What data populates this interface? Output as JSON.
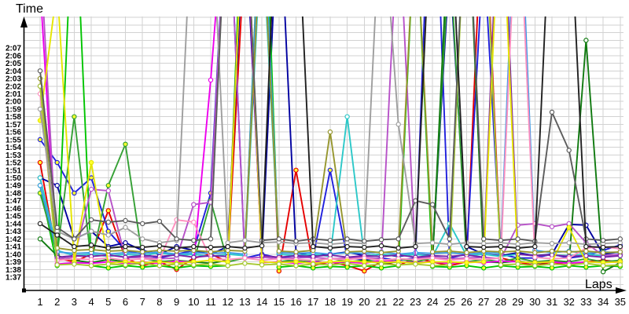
{
  "chart_data": {
    "type": "line",
    "title": "",
    "ylabel": "Time",
    "xlabel": "Laps",
    "grid": true,
    "legend": false,
    "background_color": "#ffffff",
    "grid_color": "#d2d2d2",
    "axis_color": "#000000",
    "y_unit": "seconds",
    "y_tick_start_seconds": 97,
    "y_tick_labels": [
      "1:37",
      "1:38",
      "1:39",
      "1:40",
      "1:41",
      "1:42",
      "1:43",
      "1:44",
      "1:45",
      "1:46",
      "1:47",
      "1:48",
      "1:49",
      "1:50",
      "1:51",
      "1:52",
      "1:53",
      "1:54",
      "1:55",
      "1:56",
      "1:57",
      "1:58",
      "1:59",
      "2:00",
      "2:01",
      "2:02",
      "2:03",
      "2:04",
      "2:05",
      "2:06",
      "2:07"
    ],
    "ylim_seconds": [
      95.6,
      131.5
    ],
    "x_ticks": [
      1,
      2,
      3,
      4,
      5,
      6,
      7,
      8,
      9,
      10,
      11,
      12,
      13,
      14,
      15,
      16,
      17,
      18,
      19,
      20,
      21,
      22,
      23,
      24,
      25,
      26,
      27,
      28,
      29,
      30,
      31,
      32,
      33,
      34,
      35
    ],
    "note": "values are lap times in seconds; values above ylim render as spikes clipped at chart top",
    "series": [
      {
        "name": "red",
        "color": "#e60000",
        "marker_fill": "#ffff2e",
        "values": [
          112,
          99.5,
          99,
          100,
          105.7,
          99.5,
          98.5,
          99,
          98,
          99.5,
          100,
          99,
          140,
          152,
          97.8,
          111,
          98.5,
          99,
          98.5,
          97.8,
          99,
          98.5,
          99.5,
          99,
          98.5,
          99,
          150,
          99.5,
          99,
          98.5,
          99,
          98.5,
          99,
          99.2,
          99
        ]
      },
      {
        "name": "blue",
        "color": "#2020dd",
        "marker_fill": "#ffff2e",
        "values": [
          115,
          112,
          108,
          110,
          103,
          100.5,
          100,
          99.5,
          100,
          100.5,
          108,
          150,
          99.5,
          100,
          99.5,
          99.8,
          99.5,
          111,
          99.5,
          99.3,
          99.5,
          99.2,
          99.5,
          160,
          99.5,
          100,
          140,
          100,
          99.5,
          99.5,
          100,
          99.5,
          99.8,
          100.5,
          101.2
        ]
      },
      {
        "name": "navy",
        "color": "#0000a0",
        "marker_fill": "#ffffff",
        "values": [
          110,
          109,
          102,
          103,
          101,
          101.5,
          100.5,
          100,
          101,
          100.5,
          100,
          101,
          145,
          99.8,
          148,
          100.2,
          99.8,
          100,
          100.3,
          99.8,
          100,
          99.7,
          100,
          99.8,
          138,
          101,
          100,
          99.8,
          100.2,
          99.8,
          100,
          103.9,
          103.8,
          100,
          100.3
        ]
      },
      {
        "name": "green",
        "color": "#00c400",
        "marker_fill": "#ffff2e",
        "values": [
          109,
          98.5,
          150,
          98.5,
          98.2,
          98.5,
          98.3,
          98.5,
          98.2,
          98.5,
          98.4,
          98.5,
          155,
          160,
          98.3,
          98.5,
          98.2,
          98.4,
          98.3,
          98.5,
          98.2,
          98.5,
          145,
          98.4,
          98.3,
          98.5,
          98.2,
          98.5,
          98.3,
          98.4,
          98.2,
          98.5,
          98.3,
          98.5,
          98.4
        ]
      },
      {
        "name": "forest-green",
        "color": "#35a035",
        "marker_fill": "#ffff2e",
        "values": [
          108,
          100,
          118,
          99,
          109,
          114.4,
          99.5,
          99,
          99.2,
          99,
          107,
          99,
          99.5,
          152,
          99,
          99.3,
          99,
          99.5,
          99,
          99.2,
          99,
          99.4,
          99,
          99.5,
          140,
          99,
          99.3,
          99,
          99.5,
          99,
          99.2,
          99,
          99.4,
          99,
          99.2
        ]
      },
      {
        "name": "dark-green",
        "color": "#107a10",
        "marker_fill": "#ffffff",
        "values": [
          102,
          99.8,
          99.2,
          98.9,
          99.3,
          99,
          98.8,
          99.1,
          98.9,
          99,
          98.8,
          99.2,
          150,
          99,
          98.9,
          99.1,
          98.8,
          99,
          98.9,
          99.2,
          98.8,
          99,
          98.9,
          99,
          145,
          150,
          99,
          98.9,
          99.1,
          98.8,
          99,
          98.9,
          128,
          97.7,
          98.9
        ]
      },
      {
        "name": "cyan",
        "color": "#2cc8c8",
        "marker_fill": "#ffffff",
        "values": [
          110,
          100.5,
          99.8,
          100,
          99.7,
          100,
          99.8,
          100.2,
          99.8,
          100,
          99.7,
          100,
          99.8,
          143,
          100,
          99.8,
          100,
          99.7,
          118,
          99.8,
          100,
          99.8,
          100,
          99.7,
          104,
          99.8,
          100,
          99.7,
          100,
          99.8,
          99.9,
          99.8,
          100,
          99.8,
          99.9
        ]
      },
      {
        "name": "sky-blue",
        "color": "#3b9ce8",
        "marker_fill": "#ffffff",
        "values": [
          109,
          100.3,
          100.1,
          100.2,
          100,
          100.2,
          100.1,
          100.3,
          100,
          100.2,
          100.1,
          100.2,
          100,
          150,
          100.2,
          100.1,
          100.2,
          100,
          100.2,
          100.1,
          100.3,
          100,
          100.2,
          100.1,
          100.2,
          100,
          100.2,
          100.1,
          155,
          100.5,
          100.2,
          100.4,
          100.1,
          100.3,
          100.2
        ]
      },
      {
        "name": "magenta",
        "color": "#ee00ee",
        "marker_fill": "#ffffff",
        "values": [
          135,
          98.7,
          98.9,
          98.8,
          99,
          98.8,
          99,
          98.8,
          99.1,
          98.9,
          122.8,
          152,
          148,
          98.9,
          99,
          98.8,
          99,
          98.9,
          99,
          98.8,
          99.2,
          99,
          98.9,
          99,
          98.8,
          99,
          98.9,
          99.1,
          99,
          98.9,
          99,
          98.8,
          99,
          98.9,
          99
        ]
      },
      {
        "name": "orchid",
        "color": "#b752c8",
        "marker_fill": "#ffffff",
        "values": [
          140,
          99.4,
          99.6,
          108.5,
          108.3,
          99.5,
          99.6,
          99.4,
          99.5,
          106.5,
          106.8,
          150,
          99.5,
          99.6,
          99.4,
          99.5,
          99.6,
          99.4,
          99.5,
          99.6,
          99.4,
          145,
          99.5,
          99.6,
          99.4,
          99.5,
          99.6,
          99.4,
          103.8,
          104,
          103.6,
          104,
          101.5,
          99.8,
          100
        ]
      },
      {
        "name": "purple",
        "color": "#7a22a8",
        "marker_fill": "#ffffff",
        "values": [
          122,
          99.6,
          99.8,
          99.7,
          99.9,
          99.6,
          99.8,
          99.7,
          99.9,
          99.6,
          99.8,
          99.7,
          150,
          99.8,
          99.6,
          99.8,
          99.7,
          99.9,
          99.6,
          99.8,
          99.7,
          99.9,
          99.6,
          99.8,
          99.7,
          99.9,
          99.6,
          155,
          100,
          99.8,
          99.9,
          99.7,
          99.8,
          99.6,
          99.8
        ]
      },
      {
        "name": "pink",
        "color": "#ff8fbe",
        "marker_fill": "#ffffff",
        "values": [
          121,
          99.2,
          99.4,
          99.3,
          99.5,
          99.2,
          99.4,
          99.3,
          104.5,
          104.2,
          99.4,
          99.3,
          99.5,
          99.2,
          99.4,
          99.3,
          99.2,
          99.4,
          99.3,
          99.5,
          99.2,
          99.4,
          99.3,
          99.5,
          99.2,
          99.4,
          99.3,
          99.5,
          150,
          99.6,
          99.4,
          99.5,
          100.8,
          101,
          100.7
        ]
      },
      {
        "name": "yellow",
        "color": "#e6e600",
        "marker_fill": "#ffff2e",
        "values": [
          117.5,
          135,
          99,
          112,
          98.8,
          99,
          98.9,
          99,
          98.8,
          99,
          99.2,
          99,
          150,
          99,
          98.9,
          99,
          98.8,
          99,
          99.1,
          99,
          98.9,
          99,
          98.8,
          99,
          99,
          98.9,
          99,
          150,
          99,
          98.9,
          99,
          103.5,
          99,
          98.9,
          99
        ]
      },
      {
        "name": "olive",
        "color": "#96962e",
        "marker_fill": "#ffffff",
        "values": [
          123,
          100.8,
          100.5,
          100.6,
          100.4,
          100.5,
          100.3,
          100.5,
          100.4,
          100.5,
          100.3,
          100.5,
          100.4,
          145,
          100.4,
          100.3,
          100.5,
          116,
          100.3,
          100.4,
          100.2,
          100.4,
          145,
          100.3,
          100.4,
          100.2,
          100.4,
          100.3,
          100.4,
          100.2,
          100.4,
          100.3,
          100.4,
          100.2,
          100.3
        ]
      },
      {
        "name": "yellow-green",
        "color": "#a6c832",
        "marker_fill": "#ffffff",
        "values": [
          122,
          98.6,
          98.7,
          98.5,
          98.7,
          98.6,
          98.8,
          98.5,
          98.7,
          98.6,
          98.7,
          98.5,
          98.8,
          98.6,
          98.7,
          98.5,
          98.7,
          98.6,
          98.8,
          98.5,
          98.7,
          98.6,
          98.7,
          98.5,
          98.6,
          150,
          148,
          98.6,
          98.7,
          98.5,
          98.7,
          98.6,
          98.8,
          98.5,
          98.6
        ]
      },
      {
        "name": "gray",
        "color": "#9e9e9e",
        "marker_fill": "#ffffff",
        "values": [
          119,
          103,
          102,
          103,
          102.5,
          103.5,
          102,
          101.5,
          101.8,
          150,
          148,
          101.5,
          101.8,
          101.5,
          101.6,
          101.4,
          101.5,
          101.3,
          101.5,
          101.4,
          148,
          117,
          101.4,
          101.5,
          101.3,
          101.5,
          101.4,
          101.5,
          101.3,
          101.5,
          101.4,
          101.5,
          101.3,
          101.4,
          101.5
        ]
      },
      {
        "name": "dark-gray",
        "color": "#5c5c5c",
        "marker_fill": "#ffffff",
        "values": [
          124,
          103.5,
          102,
          104.5,
          104.2,
          104.4,
          104,
          104.3,
          102,
          101.8,
          102,
          150,
          148,
          101.8,
          102,
          101.7,
          102,
          101.8,
          102,
          101.7,
          101.9,
          102,
          107,
          106.5,
          102,
          150,
          102,
          101.8,
          102,
          101.7,
          118.6,
          113.6,
          102,
          101.8,
          102
        ]
      },
      {
        "name": "black",
        "color": "#202020",
        "marker_fill": "#ffffff",
        "values": [
          104,
          102.5,
          101,
          101.2,
          100.8,
          101,
          100.9,
          101.1,
          100.8,
          101,
          100.9,
          101,
          100.8,
          101.1,
          155,
          150,
          101,
          100.8,
          101,
          100.9,
          101.1,
          100.8,
          101,
          150,
          148,
          101,
          100.9,
          101,
          100.8,
          101,
          150,
          148,
          101,
          100.9,
          101
        ]
      }
    ]
  }
}
